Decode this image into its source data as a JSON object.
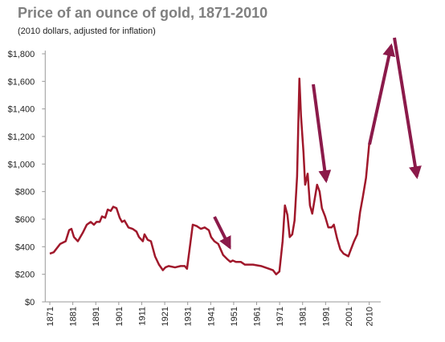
{
  "chart_data": {
    "type": "line",
    "title": "Price of an ounce of gold, 1871-2010",
    "subtitle": "(2010 dollars, adjusted for inflation)",
    "color": "#a0182b",
    "x": [
      1871.0,
      1872.7,
      1875.5,
      1877.9,
      1879.4,
      1880.4,
      1881.5,
      1883.2,
      1885.3,
      1887.1,
      1888.8,
      1890.2,
      1891.3,
      1892.7,
      1893.7,
      1895.1,
      1896.2,
      1897.5,
      1898.6,
      1900.0,
      1901.4,
      1902.4,
      1903.5,
      1905.2,
      1907.0,
      1908.7,
      1909.8,
      1911.5,
      1912.2,
      1913.6,
      1915.0,
      1916.8,
      1918.5,
      1920.2,
      1921.3,
      1922.7,
      1925.5,
      1927.9,
      1929.7,
      1930.7,
      1931.8,
      1933.2,
      1934.9,
      1936.7,
      1938.4,
      1940.2,
      1941.2,
      1942.6,
      1944.3,
      1946.4,
      1948.2,
      1949.6,
      1950.6,
      1952.0,
      1954.1,
      1955.9,
      1959.4,
      1962.9,
      1966.4,
      1968.1,
      1969.5,
      1970.9,
      1972.3,
      1973.3,
      1974.4,
      1975.4,
      1976.5,
      1977.5,
      1978.6,
      1979.6,
      1980.3,
      1981.4,
      1982.1,
      1983.2,
      1984.2,
      1985.2,
      1986.2,
      1987.3,
      1988.4,
      1989.4,
      1990.8,
      1992.2,
      1993.6,
      1994.6,
      1996.0,
      1997.4,
      1998.8,
      1999.9,
      2000.9,
      2002.0,
      2003.4,
      2004.8,
      2006.0,
      2007.2,
      2008.6,
      2010.0
    ],
    "values": [
      350,
      360,
      420,
      440,
      520,
      530,
      470,
      440,
      500,
      560,
      580,
      560,
      580,
      580,
      620,
      610,
      670,
      660,
      690,
      680,
      610,
      580,
      590,
      540,
      530,
      510,
      470,
      440,
      490,
      450,
      440,
      330,
      270,
      230,
      250,
      260,
      250,
      260,
      260,
      240,
      380,
      560,
      550,
      530,
      540,
      520,
      470,
      440,
      420,
      340,
      310,
      290,
      300,
      290,
      290,
      270,
      270,
      260,
      240,
      230,
      200,
      220,
      440,
      700,
      630,
      470,
      490,
      590,
      910,
      1620,
      1350,
      1080,
      850,
      930,
      700,
      640,
      740,
      850,
      800,
      680,
      620,
      540,
      540,
      560,
      460,
      380,
      350,
      340,
      330,
      380,
      440,
      490,
      650,
      760,
      900,
      1150
    ],
    "xlim": [
      1869,
      2015
    ],
    "xticks": [
      1871,
      1881,
      1891,
      1901,
      1911,
      1921,
      1931,
      1941,
      1951,
      1961,
      1971,
      1981,
      1991,
      2001,
      2010
    ],
    "ylim": [
      0,
      1800
    ],
    "yticks": [
      {
        "value": 0,
        "label": "$0"
      },
      {
        "value": 200,
        "label": "$200"
      },
      {
        "value": 400,
        "label": "$400"
      },
      {
        "value": 600,
        "label": "$600"
      },
      {
        "value": 800,
        "label": "$800"
      },
      {
        "value": 1000,
        "label": "$1,000"
      },
      {
        "value": 1200,
        "label": "$1,200"
      },
      {
        "value": 1400,
        "label": "$1,400"
      },
      {
        "value": 1600,
        "label": "$1,600"
      },
      {
        "value": 1800,
        "label": "$1,800"
      }
    ]
  }
}
